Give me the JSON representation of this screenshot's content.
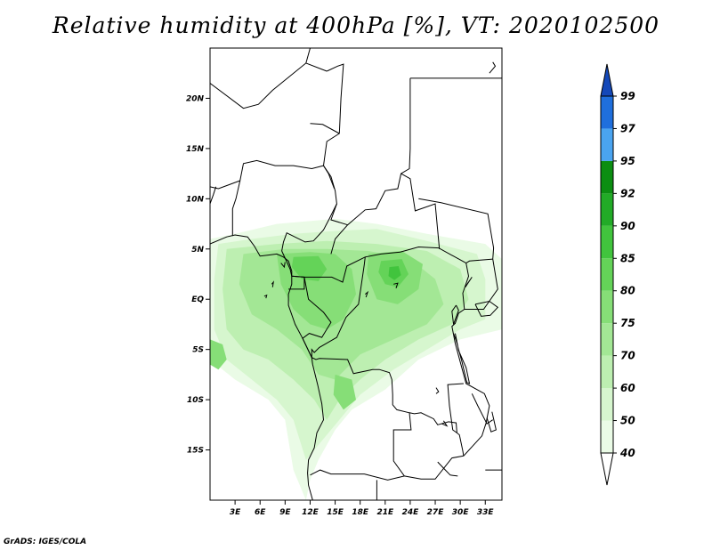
{
  "title": "Relative humidity at 400hPa [%], VT: 2020102500",
  "credit": "GrADS: IGES/COLA",
  "map": {
    "lon_range": [
      0,
      35
    ],
    "lat_range": [
      -20,
      25
    ],
    "x_ticks": [
      "3E",
      "6E",
      "9E",
      "12E",
      "15E",
      "18E",
      "21E",
      "24E",
      "27E",
      "30E",
      "33E"
    ],
    "x_tick_values": [
      3,
      6,
      9,
      12,
      15,
      18,
      21,
      24,
      27,
      30,
      33
    ],
    "y_ticks": [
      "20N",
      "15N",
      "10N",
      "5N",
      "EQ",
      "5S",
      "10S",
      "15S"
    ],
    "y_tick_values": [
      20,
      15,
      10,
      5,
      0,
      -5,
      -10,
      -15
    ]
  },
  "colorbar": {
    "levels": [
      "40",
      "50",
      "60",
      "70",
      "75",
      "80",
      "85",
      "90",
      "92",
      "95",
      "97",
      "99"
    ],
    "colors": [
      "#ffffff",
      "#eafbe6",
      "#d6f6ce",
      "#bdefb1",
      "#a3e795",
      "#86de77",
      "#64d358",
      "#41c43d",
      "#22ab27",
      "#0c8e12",
      "#4aa4f0",
      "#1f6fdd",
      "#1448b9"
    ]
  },
  "humidity_regions": [
    {
      "level": "40",
      "points": [
        [
          0,
          6
        ],
        [
          3,
          6.5
        ],
        [
          8,
          7.5
        ],
        [
          15,
          8
        ],
        [
          20,
          7.5
        ],
        [
          26,
          6.5
        ],
        [
          33,
          5.5
        ],
        [
          35,
          4
        ],
        [
          35,
          -3
        ],
        [
          30,
          -4
        ],
        [
          25,
          -6
        ],
        [
          21,
          -9
        ],
        [
          17,
          -11
        ],
        [
          15,
          -13
        ],
        [
          13,
          -16
        ],
        [
          12,
          -18
        ],
        [
          11.5,
          -20
        ],
        [
          10,
          -17
        ],
        [
          9,
          -12
        ],
        [
          7,
          -10
        ],
        [
          3,
          -8
        ],
        [
          0,
          -6
        ]
      ]
    },
    {
      "level": "50",
      "points": [
        [
          1,
          5.5
        ],
        [
          5,
          6
        ],
        [
          10,
          6.5
        ],
        [
          15,
          6.8
        ],
        [
          20,
          7
        ],
        [
          26,
          5.8
        ],
        [
          32,
          4.5
        ],
        [
          33,
          2
        ],
        [
          33,
          -2
        ],
        [
          30,
          -3
        ],
        [
          26,
          -5
        ],
        [
          22,
          -7
        ],
        [
          18,
          -9.5
        ],
        [
          15.5,
          -12
        ],
        [
          13.5,
          -14
        ],
        [
          11.5,
          -16
        ],
        [
          10,
          -12
        ],
        [
          8,
          -10
        ],
        [
          5,
          -8
        ],
        [
          2,
          -6
        ],
        [
          0.5,
          -3
        ],
        [
          0.5,
          2
        ]
      ]
    },
    {
      "level": "60",
      "points": [
        [
          2,
          5
        ],
        [
          8,
          5.5
        ],
        [
          14,
          5.8
        ],
        [
          20,
          5.5
        ],
        [
          26,
          4.8
        ],
        [
          30,
          3
        ],
        [
          31,
          0
        ],
        [
          29,
          -2.5
        ],
        [
          25,
          -4
        ],
        [
          21,
          -6
        ],
        [
          18,
          -8
        ],
        [
          15.5,
          -10
        ],
        [
          14,
          -12
        ],
        [
          12.5,
          -10
        ],
        [
          10,
          -8
        ],
        [
          7,
          -6
        ],
        [
          4,
          -5
        ],
        [
          2,
          -3
        ],
        [
          1.5,
          1
        ]
      ]
    },
    {
      "level": "70",
      "points": [
        [
          4,
          4.5
        ],
        [
          9,
          5
        ],
        [
          14,
          5
        ],
        [
          19,
          4.8
        ],
        [
          24,
          4
        ],
        [
          27,
          2
        ],
        [
          28,
          -0.5
        ],
        [
          26,
          -2.5
        ],
        [
          22,
          -4
        ],
        [
          18,
          -5.5
        ],
        [
          15,
          -8
        ],
        [
          13,
          -7.5
        ],
        [
          11,
          -5
        ],
        [
          8,
          -3
        ],
        [
          5,
          -1.5
        ],
        [
          3.5,
          1.5
        ]
      ]
    },
    {
      "level": "75",
      "points": [
        [
          8,
          4.5
        ],
        [
          12,
          4.7
        ],
        [
          15,
          4.5
        ],
        [
          17,
          3
        ],
        [
          17.5,
          0.5
        ],
        [
          16,
          -2
        ],
        [
          14,
          -3
        ],
        [
          12,
          -2.5
        ],
        [
          10,
          -1
        ],
        [
          8.5,
          1.5
        ]
      ]
    },
    {
      "level": "75",
      "points": [
        [
          19,
          4.5
        ],
        [
          23,
          4.8
        ],
        [
          25.5,
          3.5
        ],
        [
          25,
          1
        ],
        [
          22.5,
          -0.5
        ],
        [
          20,
          0
        ],
        [
          18.8,
          2.5
        ]
      ]
    },
    {
      "level": "80",
      "points": [
        [
          10,
          4.2
        ],
        [
          13,
          4.3
        ],
        [
          14,
          3
        ],
        [
          13,
          1.8
        ],
        [
          11,
          2
        ],
        [
          9.8,
          3.2
        ]
      ]
    },
    {
      "level": "80",
      "points": [
        [
          20.5,
          3.8
        ],
        [
          23,
          4
        ],
        [
          23.8,
          2.5
        ],
        [
          22.5,
          1.2
        ],
        [
          21,
          1.5
        ],
        [
          20.2,
          2.7
        ]
      ]
    },
    {
      "level": "85",
      "points": [
        [
          21.5,
          3.2
        ],
        [
          22.6,
          3.3
        ],
        [
          22.9,
          2.4
        ],
        [
          22.1,
          1.9
        ],
        [
          21.4,
          2.3
        ]
      ]
    },
    {
      "level": "75",
      "points": [
        [
          15,
          -7.5
        ],
        [
          17,
          -8
        ],
        [
          17.5,
          -10
        ],
        [
          16,
          -11
        ],
        [
          14.8,
          -9.5
        ]
      ]
    },
    {
      "level": "75",
      "points": [
        [
          0,
          -4
        ],
        [
          1.5,
          -4.5
        ],
        [
          2,
          -6
        ],
        [
          1,
          -7
        ],
        [
          0,
          -6.5
        ]
      ]
    }
  ],
  "country_borders": [
    [
      [
        0,
        21.5
      ],
      [
        4,
        19
      ],
      [
        5.8,
        19.4
      ],
      [
        7.5,
        20.8
      ],
      [
        11.5,
        23.5
      ],
      [
        14,
        22.7
      ]
    ],
    [
      [
        11.5,
        23.5
      ],
      [
        12,
        25
      ]
    ],
    [
      [
        14,
        22.7
      ],
      [
        15.3,
        23.2
      ],
      [
        16,
        23.4
      ],
      [
        15.7,
        20
      ],
      [
        15.5,
        16.5
      ],
      [
        14,
        15.7
      ],
      [
        13.6,
        13.3
      ],
      [
        14.2,
        12.5
      ],
      [
        14.9,
        11
      ]
    ],
    [
      [
        0,
        11.2
      ],
      [
        1,
        11
      ],
      [
        3.6,
        11.8
      ],
      [
        4,
        13.5
      ],
      [
        5.6,
        13.8
      ],
      [
        7.8,
        13.3
      ],
      [
        10,
        13.3
      ],
      [
        12.2,
        13
      ],
      [
        13.6,
        13.3
      ]
    ],
    [
      [
        3.6,
        11.8
      ],
      [
        3.1,
        10
      ],
      [
        2.7,
        9
      ],
      [
        2.7,
        6.3
      ]
    ],
    [
      [
        13.6,
        13.3
      ],
      [
        14.5,
        12.2
      ],
      [
        15,
        10.8
      ],
      [
        15.2,
        9.5
      ],
      [
        14.3,
        8
      ],
      [
        13.6,
        6.9
      ],
      [
        12.4,
        5.8
      ],
      [
        11.4,
        5.7
      ],
      [
        9.2,
        6.6
      ],
      [
        8.8,
        5.7
      ],
      [
        8.6,
        4.8
      ]
    ],
    [
      [
        8.6,
        4.8
      ],
      [
        9.6,
        3
      ],
      [
        9.8,
        2.3
      ],
      [
        11.3,
        2.2
      ],
      [
        13.3,
        2.2
      ],
      [
        14.6,
        2.2
      ],
      [
        15.9,
        1.7
      ],
      [
        16.4,
        3.3
      ],
      [
        18.6,
        4.2
      ],
      [
        20.5,
        4.5
      ],
      [
        22.8,
        4.7
      ],
      [
        25,
        5.2
      ],
      [
        27.4,
        5.1
      ],
      [
        30.7,
        3.6
      ],
      [
        31.1,
        3.8
      ],
      [
        33.9,
        4
      ]
    ],
    [
      [
        14.5,
        4.5
      ],
      [
        15,
        6
      ],
      [
        16.5,
        7.4
      ],
      [
        18.6,
        8.9
      ],
      [
        19.9,
        9
      ],
      [
        21,
        10.8
      ],
      [
        22.5,
        11
      ],
      [
        22.9,
        12.5
      ],
      [
        23.9,
        13
      ],
      [
        24,
        15
      ],
      [
        24,
        19.5
      ],
      [
        24,
        20
      ],
      [
        24,
        22
      ]
    ],
    [
      [
        16.5,
        7.4
      ],
      [
        14.5,
        7.9
      ],
      [
        15.2,
        9.5
      ]
    ],
    [
      [
        15.5,
        16.5
      ],
      [
        13.5,
        17.4
      ],
      [
        12,
        17.5
      ]
    ],
    [
      [
        22.9,
        12.5
      ],
      [
        24,
        12
      ],
      [
        24.6,
        8.8
      ],
      [
        27,
        9.5
      ],
      [
        27.5,
        5
      ]
    ],
    [
      [
        24,
        22
      ],
      [
        29,
        22
      ],
      [
        31,
        22
      ],
      [
        35,
        22
      ]
    ],
    [
      [
        25,
        10
      ],
      [
        27.7,
        9.6
      ],
      [
        33.3,
        8.5
      ],
      [
        34,
        5.1
      ],
      [
        33.9,
        4
      ]
    ],
    [
      [
        9.8,
        2.3
      ],
      [
        11.3,
        2.2
      ],
      [
        11.3,
        1
      ],
      [
        9.4,
        1
      ]
    ],
    [
      [
        11.3,
        2.2
      ],
      [
        11.8,
        0
      ],
      [
        13.6,
        -1.3
      ],
      [
        14.5,
        -2.3
      ],
      [
        13.4,
        -3.8
      ],
      [
        11.9,
        -3.4
      ],
      [
        11.1,
        -3.9
      ]
    ],
    [
      [
        11.1,
        -3.9
      ],
      [
        12.2,
        -5.8
      ],
      [
        12.7,
        -6
      ],
      [
        13.1,
        -5.9
      ],
      [
        16.5,
        -6
      ],
      [
        17.2,
        -7.4
      ],
      [
        19.5,
        -7
      ],
      [
        20.3,
        -7
      ],
      [
        21.5,
        -7.3
      ],
      [
        21.8,
        -8
      ],
      [
        21.9,
        -9.5
      ],
      [
        21.9,
        -10.5
      ],
      [
        22.4,
        -11
      ],
      [
        23.9,
        -11.3
      ],
      [
        24.5,
        -11.4
      ],
      [
        25.3,
        -11.3
      ],
      [
        26.8,
        -11.9
      ],
      [
        27.3,
        -12.5
      ],
      [
        28.6,
        -12.2
      ],
      [
        29.5,
        -12.3
      ],
      [
        29.6,
        -13.3
      ]
    ],
    [
      [
        12.2,
        -5.8
      ],
      [
        12.2,
        -5
      ],
      [
        12.5,
        -5.3
      ],
      [
        13.1,
        -4.8
      ],
      [
        15.2,
        -3.8
      ],
      [
        16.3,
        -1.8
      ],
      [
        17.8,
        -0.5
      ],
      [
        18.5,
        3.5
      ],
      [
        18.6,
        4.2
      ]
    ],
    [
      [
        23.9,
        -11.3
      ],
      [
        24.1,
        -13
      ],
      [
        22,
        -13
      ],
      [
        22,
        -16.1
      ],
      [
        23.3,
        -17.6
      ],
      [
        25.3,
        -17.9
      ],
      [
        27,
        -17.9
      ],
      [
        29,
        -15.8
      ],
      [
        30.4,
        -15.6
      ]
    ],
    [
      [
        33.9,
        4
      ],
      [
        34.5,
        1
      ],
      [
        32.8,
        -1
      ],
      [
        30.5,
        -1
      ],
      [
        29.8,
        -1.4
      ],
      [
        29.4,
        -2.4
      ],
      [
        29,
        -2.7
      ],
      [
        29.4,
        -4.4
      ],
      [
        30.7,
        -8.4
      ],
      [
        32.9,
        -9.4
      ],
      [
        33.5,
        -10.6
      ],
      [
        33.1,
        -12.3
      ],
      [
        32.6,
        -13.6
      ],
      [
        30.4,
        -15.6
      ]
    ],
    [
      [
        30.5,
        -1
      ],
      [
        30.3,
        0.6
      ],
      [
        31,
        2.3
      ],
      [
        30.7,
        3.6
      ]
    ],
    [
      [
        29.6,
        -13.3
      ],
      [
        29.9,
        -13.5
      ],
      [
        30.3,
        -15.1
      ],
      [
        30.4,
        -15.6
      ]
    ],
    [
      [
        12,
        -17.5
      ],
      [
        13.2,
        -17
      ],
      [
        14.5,
        -17.4
      ],
      [
        18.5,
        -17.4
      ],
      [
        21.3,
        -18
      ],
      [
        23.3,
        -17.6
      ]
    ],
    [
      [
        20,
        -18
      ],
      [
        20,
        -20
      ]
    ],
    [
      [
        33,
        -17
      ],
      [
        35,
        -17
      ]
    ],
    [
      [
        29.6,
        -13.3
      ],
      [
        29.1,
        -13
      ],
      [
        28.7,
        -10.6
      ],
      [
        28.5,
        -8.5
      ],
      [
        30.4,
        -8.4
      ]
    ]
  ],
  "coastlines": [
    [
      [
        0,
        5.5
      ],
      [
        2,
        6.2
      ],
      [
        3,
        6.4
      ],
      [
        4.5,
        6.2
      ],
      [
        5.3,
        5.3
      ],
      [
        6,
        4.3
      ],
      [
        7,
        4.4
      ],
      [
        8,
        4.5
      ],
      [
        8.8,
        4.2
      ],
      [
        9.4,
        3.8
      ],
      [
        9.8,
        2.8
      ],
      [
        9.8,
        1.5
      ],
      [
        9.4,
        0.5
      ],
      [
        9.4,
        -0.6
      ],
      [
        10.2,
        -2.5
      ],
      [
        11.1,
        -3.9
      ],
      [
        12.2,
        -5.8
      ],
      [
        12.3,
        -6.5
      ],
      [
        12.9,
        -8.5
      ],
      [
        13.4,
        -10.4
      ],
      [
        13.6,
        -12
      ],
      [
        12.8,
        -13.3
      ],
      [
        12.5,
        -14.8
      ],
      [
        11.8,
        -16
      ],
      [
        11.7,
        -17.3
      ],
      [
        11.8,
        -18.5
      ],
      [
        12.3,
        -20
      ]
    ],
    [
      [
        0,
        9.5
      ],
      [
        0.4,
        10.4
      ],
      [
        0.7,
        11.2
      ]
    ],
    [
      [
        8.5,
        3.6
      ],
      [
        8.9,
        3.2
      ],
      [
        9,
        3.7
      ]
    ],
    [
      [
        7.4,
        1.5
      ],
      [
        7.6,
        1.7
      ],
      [
        7.5,
        1.2
      ]
    ],
    [
      [
        6.5,
        0.3
      ],
      [
        6.8,
        0.4
      ],
      [
        6.7,
        0.1
      ]
    ],
    [
      [
        18.6,
        0.5
      ],
      [
        18.9,
        0.7
      ],
      [
        18.7,
        0.2
      ]
    ],
    [
      [
        22,
        1.5
      ],
      [
        22.5,
        1.6
      ],
      [
        22.3,
        1.1
      ]
    ],
    [
      [
        31.4,
        -9.4
      ],
      [
        32.1,
        -10.6
      ],
      [
        33.2,
        -12.4
      ],
      [
        33.9,
        -12
      ]
    ],
    [
      [
        29.2,
        -3.4
      ],
      [
        29.5,
        -4.1
      ],
      [
        30.2,
        -6.2
      ],
      [
        30.8,
        -8.3
      ],
      [
        31.1,
        -8.4
      ],
      [
        30.7,
        -6.8
      ],
      [
        29.8,
        -5.1
      ],
      [
        29.4,
        -3.4
      ]
    ],
    [
      [
        29.5,
        -0.6
      ],
      [
        29.8,
        -1.1
      ],
      [
        29.2,
        -2.5
      ],
      [
        29,
        -1.2
      ],
      [
        29.5,
        -0.6
      ]
    ],
    [
      [
        30.9,
        1.6
      ],
      [
        31.4,
        2.2
      ],
      [
        30.6,
        1.2
      ],
      [
        30.9,
        1.6
      ]
    ],
    [
      [
        31.8,
        -0.5
      ],
      [
        33.5,
        -0.2
      ],
      [
        34.5,
        -0.8
      ],
      [
        33.6,
        -1.6
      ],
      [
        32.5,
        -1.7
      ],
      [
        31.8,
        -0.5
      ]
    ],
    [
      [
        27.1,
        -8.8
      ],
      [
        27.4,
        -9.2
      ],
      [
        27.1,
        -9.4
      ]
    ],
    [
      [
        28,
        -12.1
      ],
      [
        28.4,
        -12.6
      ],
      [
        27.8,
        -12.4
      ]
    ],
    [
      [
        27.3,
        -16.2
      ],
      [
        28.1,
        -16.9
      ],
      [
        28.8,
        -17.5
      ],
      [
        29.7,
        -17.6
      ]
    ],
    [
      [
        33.2,
        -11.8
      ],
      [
        33.7,
        -13.2
      ],
      [
        34.3,
        -13
      ],
      [
        33.8,
        -11.2
      ]
    ],
    [
      [
        33.5,
        22.5
      ],
      [
        34.2,
        23.2
      ],
      [
        33.9,
        23.6
      ]
    ]
  ]
}
